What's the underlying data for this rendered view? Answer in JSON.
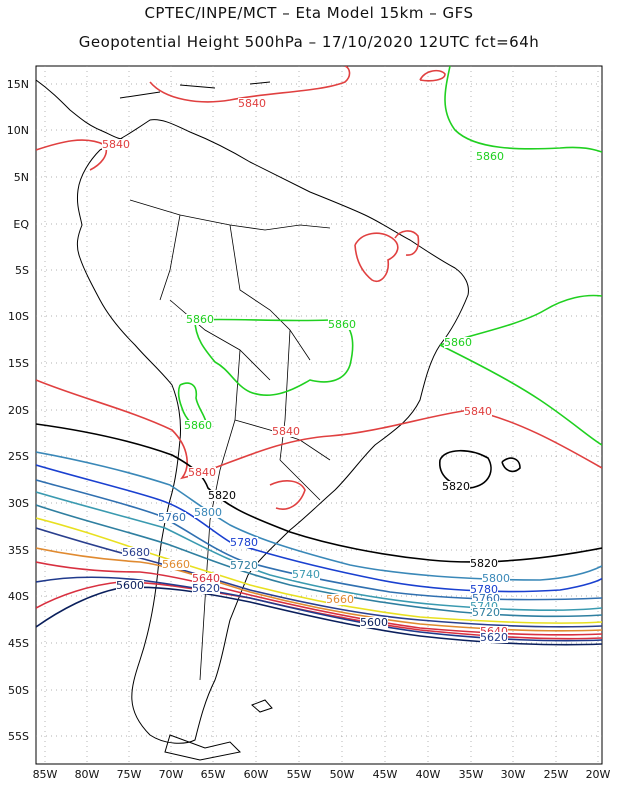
{
  "header": {
    "line1": "CPTEC/INPE/MCT –  Eta Model 15km – GFS",
    "line2": "Geopotential Height 500hPa – 17/10/2020 12UTC fct=64h"
  },
  "axes": {
    "lon_labels": [
      "85W",
      "80W",
      "75W",
      "70W",
      "65W",
      "60W",
      "55W",
      "50W",
      "45W",
      "40W",
      "35W",
      "30W",
      "25W",
      "20W"
    ],
    "lat_labels": [
      "15N",
      "10N",
      "5N",
      "EQ",
      "5S",
      "10S",
      "15S",
      "20S",
      "25S",
      "30S",
      "35S",
      "40S",
      "45S",
      "50S",
      "55S"
    ]
  },
  "colors": {
    "5600": "#0a1f5c",
    "5620": "#203a8c",
    "5640": "#d83040",
    "5660": "#e08a30",
    "5680": "#2a3f8e",
    "5700": "#e8e020",
    "5720": "#2f7fa0",
    "5740": "#3a9ab0",
    "5760": "#3070b0",
    "5780": "#1a40d0",
    "5800": "#3a88b8",
    "5820": "#000000",
    "5840": "#e04040",
    "5860": "#20d020"
  },
  "contour_labels": [
    {
      "text": "5840",
      "level": "5840"
    },
    {
      "text": "5840",
      "level": "5840"
    },
    {
      "text": "5860",
      "level": "5860"
    },
    {
      "text": "5860",
      "level": "5860"
    },
    {
      "text": "5860",
      "level": "5860"
    },
    {
      "text": "5860",
      "level": "5860"
    },
    {
      "text": "5860",
      "level": "5860"
    },
    {
      "text": "5840",
      "level": "5840"
    },
    {
      "text": "5840",
      "level": "5840"
    },
    {
      "text": "5840",
      "level": "5840"
    },
    {
      "text": "5820",
      "level": "5820"
    },
    {
      "text": "5820",
      "level": "5820"
    },
    {
      "text": "5820",
      "level": "5820"
    },
    {
      "text": "5800",
      "level": "5800"
    },
    {
      "text": "5760",
      "level": "5760"
    },
    {
      "text": "5780",
      "level": "5780"
    },
    {
      "text": "5680",
      "level": "5680"
    },
    {
      "text": "5660",
      "level": "5660"
    },
    {
      "text": "5720",
      "level": "5720"
    },
    {
      "text": "5740",
      "level": "5740"
    },
    {
      "text": "5640",
      "level": "5640"
    },
    {
      "text": "5620",
      "level": "5620"
    },
    {
      "text": "5600",
      "level": "5600"
    },
    {
      "text": "5660",
      "level": "5660"
    },
    {
      "text": "5800",
      "level": "5800"
    },
    {
      "text": "5780",
      "level": "5780"
    },
    {
      "text": "5760",
      "level": "5760"
    },
    {
      "text": "5740",
      "level": "5740"
    },
    {
      "text": "5720",
      "level": "5720"
    },
    {
      "text": "5600",
      "level": "5600"
    },
    {
      "text": "5640",
      "level": "5640"
    },
    {
      "text": "5620",
      "level": "5620"
    }
  ]
}
